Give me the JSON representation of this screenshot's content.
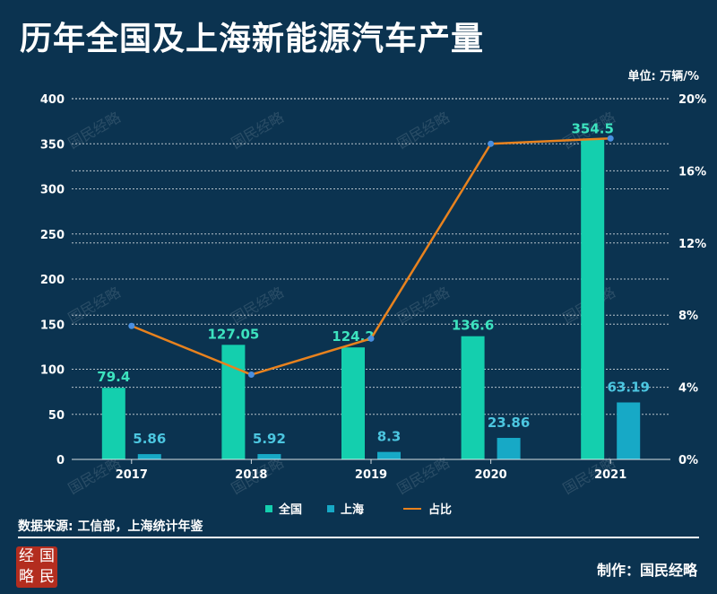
{
  "header": {
    "title": "历年全国及上海新能源汽车产量",
    "unit": "单位: 万辆/%"
  },
  "legend": {
    "national": "全国",
    "shanghai": "上海",
    "share": "占比"
  },
  "footer": {
    "source": "数据来源: 工信部，上海统计年鉴",
    "credit": "制作：国民经略",
    "logo_chars": [
      "经",
      "国",
      "略",
      "民"
    ]
  },
  "watermark": "国民经略",
  "colors": {
    "background": "#0b3350",
    "national": "#14cfae",
    "shanghai": "#17a9c6",
    "share_line": "#e8821e",
    "share_point": "#4a8fe0",
    "national_label": "#3de3bf",
    "shanghai_label": "#4cc6e0",
    "logo": "#b32d1f"
  },
  "chart_data": {
    "type": "bar",
    "categories": [
      "2017",
      "2018",
      "2019",
      "2020",
      "2021"
    ],
    "series": [
      {
        "name": "全国",
        "type": "bar",
        "axis": "left",
        "values": [
          79.4,
          127.05,
          124.2,
          136.6,
          354.5
        ],
        "labels": [
          "79.4",
          "127.05",
          "124.2",
          "136.6",
          "354.5"
        ]
      },
      {
        "name": "上海",
        "type": "bar",
        "axis": "left",
        "values": [
          5.86,
          5.92,
          8.3,
          23.86,
          63.19
        ],
        "labels": [
          "5.86",
          "5.92",
          "8.3",
          "23.86",
          "63.19"
        ]
      },
      {
        "name": "占比",
        "type": "line",
        "axis": "right",
        "values": [
          7.4,
          4.7,
          6.7,
          17.5,
          17.8
        ]
      }
    ],
    "y_left": {
      "min": 0,
      "max": 400,
      "ticks": [
        "0",
        "50",
        "100",
        "150",
        "200",
        "250",
        "300",
        "350",
        "400"
      ]
    },
    "y_right": {
      "min": 0,
      "max": 20,
      "ticks": [
        "0%",
        "4%",
        "8%",
        "12%",
        "16%",
        "20%"
      ]
    },
    "grid": true,
    "legend_position": "bottom"
  }
}
